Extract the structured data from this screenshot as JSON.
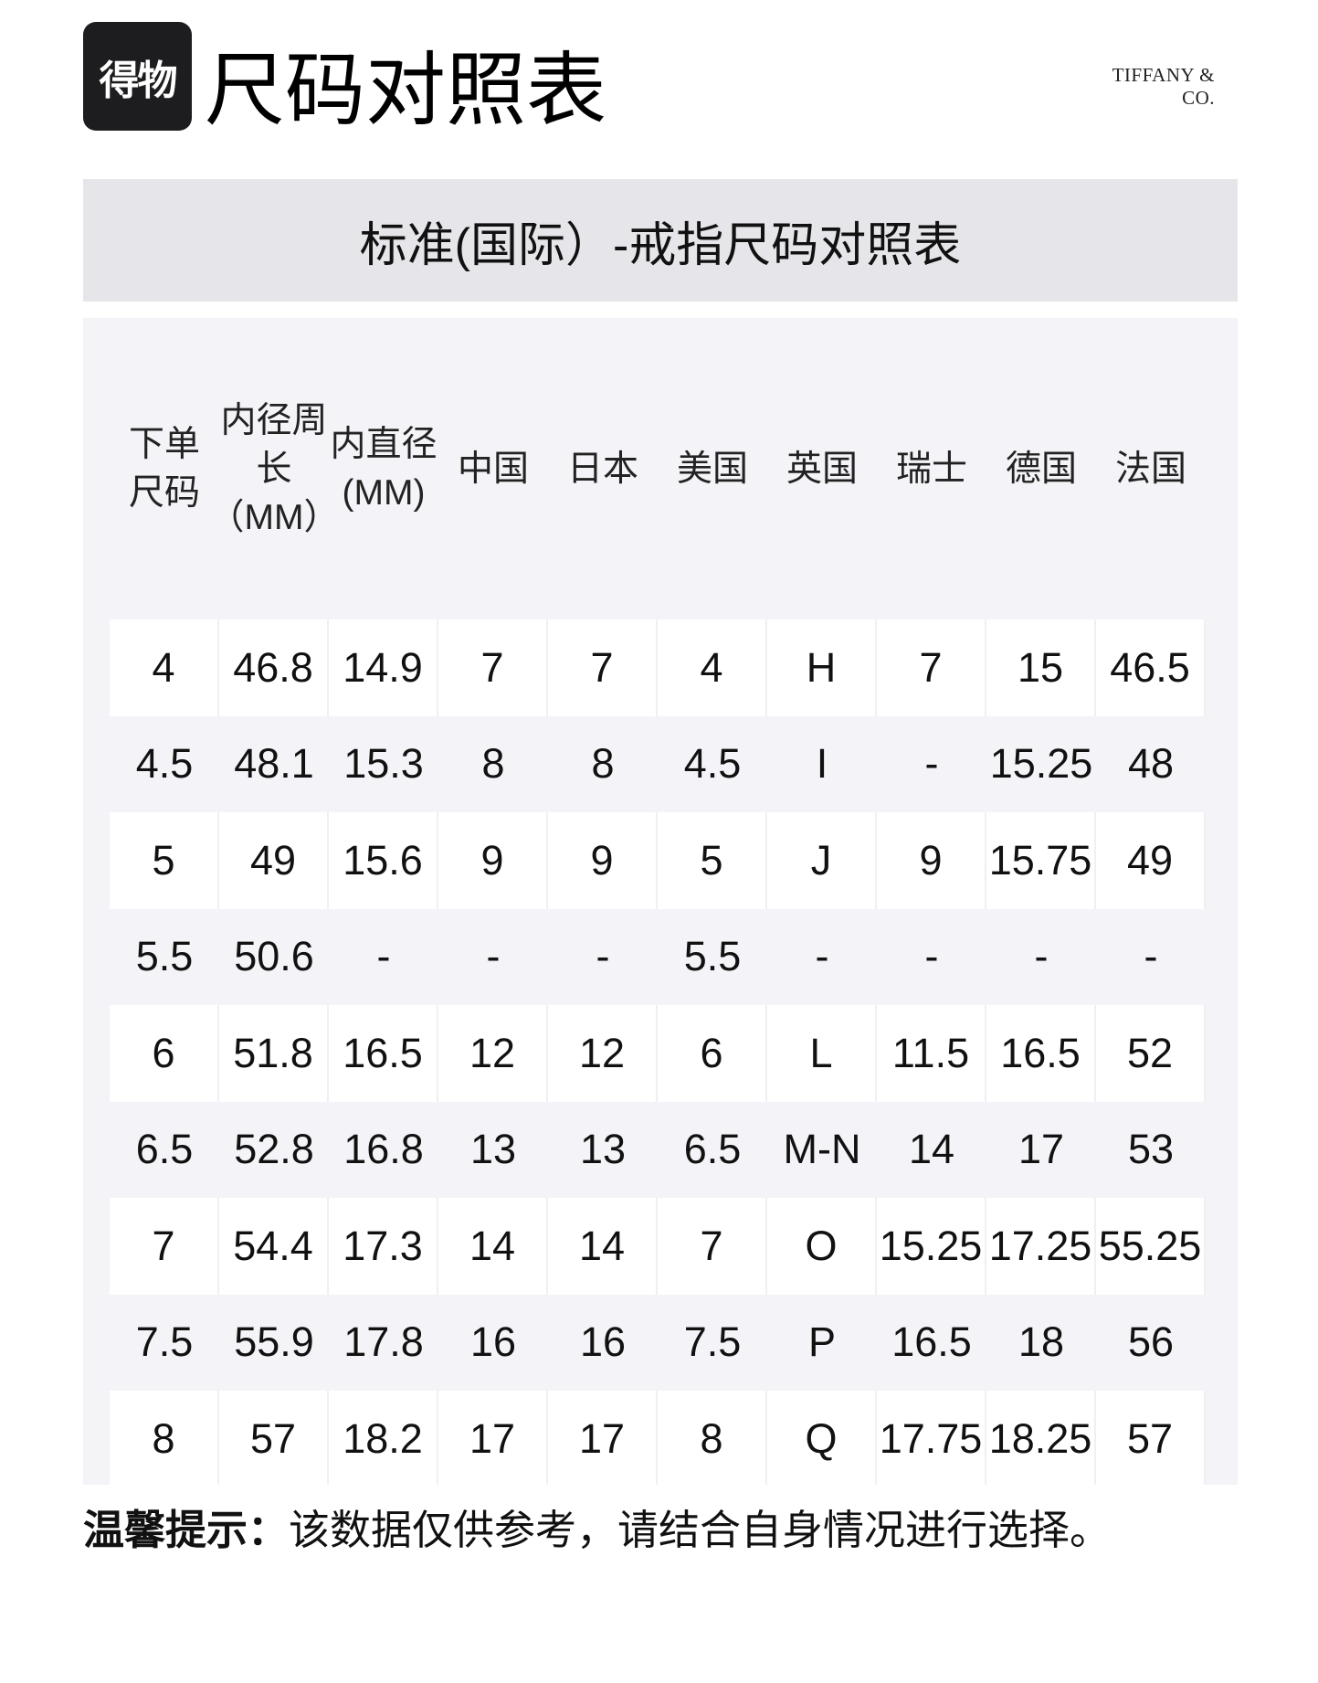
{
  "header": {
    "logo_text": "得物",
    "title": "尺码对照表",
    "brand": "TIFFANY & CO."
  },
  "banner": {
    "title": "标准(国际）-戒指尺码对照表"
  },
  "table": {
    "columns": [
      {
        "lines": [
          "下单",
          "尺码"
        ]
      },
      {
        "lines": [
          "内径周",
          "长",
          "（MM）"
        ]
      },
      {
        "lines": [
          "内直径",
          "(MM)"
        ]
      },
      {
        "lines": [
          "中国"
        ]
      },
      {
        "lines": [
          "日本"
        ]
      },
      {
        "lines": [
          "美国"
        ]
      },
      {
        "lines": [
          "英国"
        ]
      },
      {
        "lines": [
          "瑞士"
        ]
      },
      {
        "lines": [
          "德国"
        ]
      },
      {
        "lines": [
          "法国"
        ]
      }
    ],
    "rows": [
      [
        "4",
        "46.8",
        "14.9",
        "7",
        "7",
        "4",
        "H",
        "7",
        "15",
        "46.5"
      ],
      [
        "4.5",
        "48.1",
        "15.3",
        "8",
        "8",
        "4.5",
        "I",
        "-",
        "15.25",
        "48"
      ],
      [
        "5",
        "49",
        "15.6",
        "9",
        "9",
        "5",
        "J",
        "9",
        "15.75",
        "49"
      ],
      [
        "5.5",
        "50.6",
        "-",
        "-",
        "-",
        "5.5",
        "-",
        "-",
        "-",
        "-"
      ],
      [
        "6",
        "51.8",
        "16.5",
        "12",
        "12",
        "6",
        "L",
        "11.5",
        "16.5",
        "52"
      ],
      [
        "6.5",
        "52.8",
        "16.8",
        "13",
        "13",
        "6.5",
        "M-N",
        "14",
        "17",
        "53"
      ],
      [
        "7",
        "54.4",
        "17.3",
        "14",
        "14",
        "7",
        "O",
        "15.25",
        "17.25",
        "55.25"
      ],
      [
        "7.5",
        "55.9",
        "17.8",
        "16",
        "16",
        "7.5",
        "P",
        "16.5",
        "18",
        "56"
      ],
      [
        "8",
        "57",
        "18.2",
        "17",
        "17",
        "8",
        "Q",
        "17.75",
        "18.25",
        "57"
      ]
    ]
  },
  "note": {
    "label": "温馨提示：",
    "text": "该数据仅供参考，请结合自身情况进行选择。"
  }
}
